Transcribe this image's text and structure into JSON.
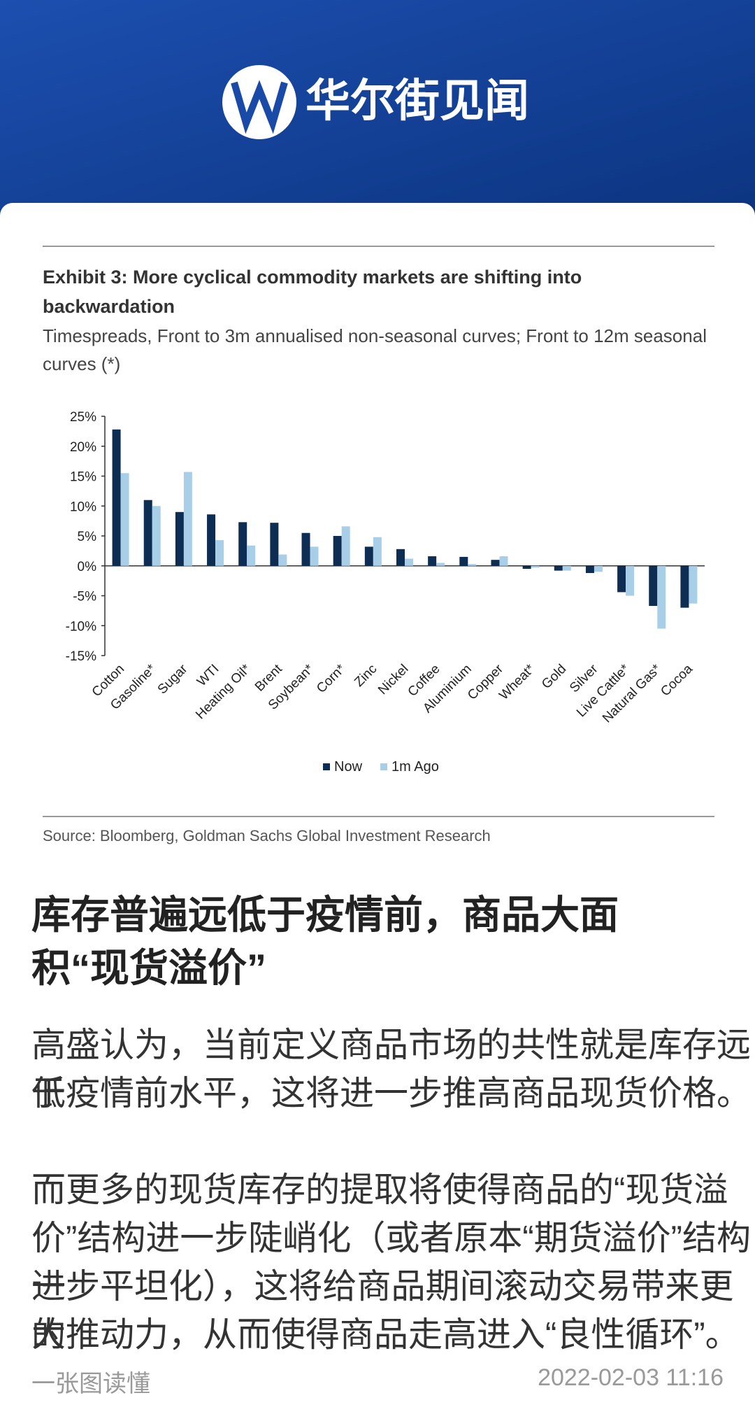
{
  "header": {
    "brand": "华尔街见闻"
  },
  "chart_data": {
    "type": "bar",
    "title": "Exhibit 3: More cyclical commodity markets are shifting into backwardation",
    "subtitle": "Timespreads, Front to 3m annualised non-seasonal curves; Front to 12m seasonal curves (*)",
    "source": "Source: Bloomberg, Goldman Sachs Global Investment Research",
    "categories": [
      "Cotton",
      "Gasoline*",
      "Sugar",
      "WTI",
      "Heating Oil*",
      "Brent",
      "Soybean*",
      "Corn*",
      "Zinc",
      "Nickel",
      "Coffee",
      "Aluminium",
      "Copper",
      "Wheat*",
      "Gold",
      "Silver",
      "Live Cattle*",
      "Natural Gas*",
      "Cocoa"
    ],
    "series": [
      {
        "name": "Now",
        "color": "#0d2d52",
        "values": [
          22.8,
          11,
          9,
          8.6,
          7.3,
          7.2,
          5.5,
          5,
          3.2,
          2.8,
          1.6,
          1.5,
          1,
          -0.5,
          -0.8,
          -1.2,
          -4.4,
          -6.7,
          -7
        ]
      },
      {
        "name": "1m Ago",
        "color": "#a9cfe8",
        "values": [
          15.5,
          10,
          15.7,
          4.3,
          3.4,
          1.9,
          3.2,
          6.6,
          4.8,
          1.2,
          0.5,
          0.3,
          1.6,
          -0.3,
          -0.8,
          -1,
          -5,
          -10.5,
          -6.3
        ]
      }
    ],
    "ylim": [
      -15,
      25
    ],
    "yticks": [
      {
        "value": -15,
        "label": "-15%"
      },
      {
        "value": -10,
        "label": "-10%"
      },
      {
        "value": -5,
        "label": "-5%"
      },
      {
        "value": 0,
        "label": "0%"
      },
      {
        "value": 5,
        "label": "5%"
      },
      {
        "value": 10,
        "label": "10%"
      },
      {
        "value": 15,
        "label": "15%"
      },
      {
        "value": 20,
        "label": "20%"
      },
      {
        "value": 25,
        "label": "25%"
      }
    ],
    "legend": "bottom"
  },
  "article": {
    "heading": [
      "库存普遍远低于疫情前，商品大面",
      "积“现货溢价”"
    ],
    "paragraphs": [
      [
        "高盛认为，当前定义商品市场的共性就是库存远低",
        "于疫情前水平，这将进一步推高商品现货价格。"
      ],
      [
        "而更多的现货库存的提取将使得商品的“现货溢",
        "价”结构进一步陡峭化（或者原本“期货溢价”结构进",
        "一步平坦化），这将给商品期间滚动交易带来更大",
        "的推动力，从而使得商品走高进入“良性循环”。"
      ]
    ],
    "footer_left": "一张图读懂",
    "footer_right": "2022-02-03 11:16"
  }
}
